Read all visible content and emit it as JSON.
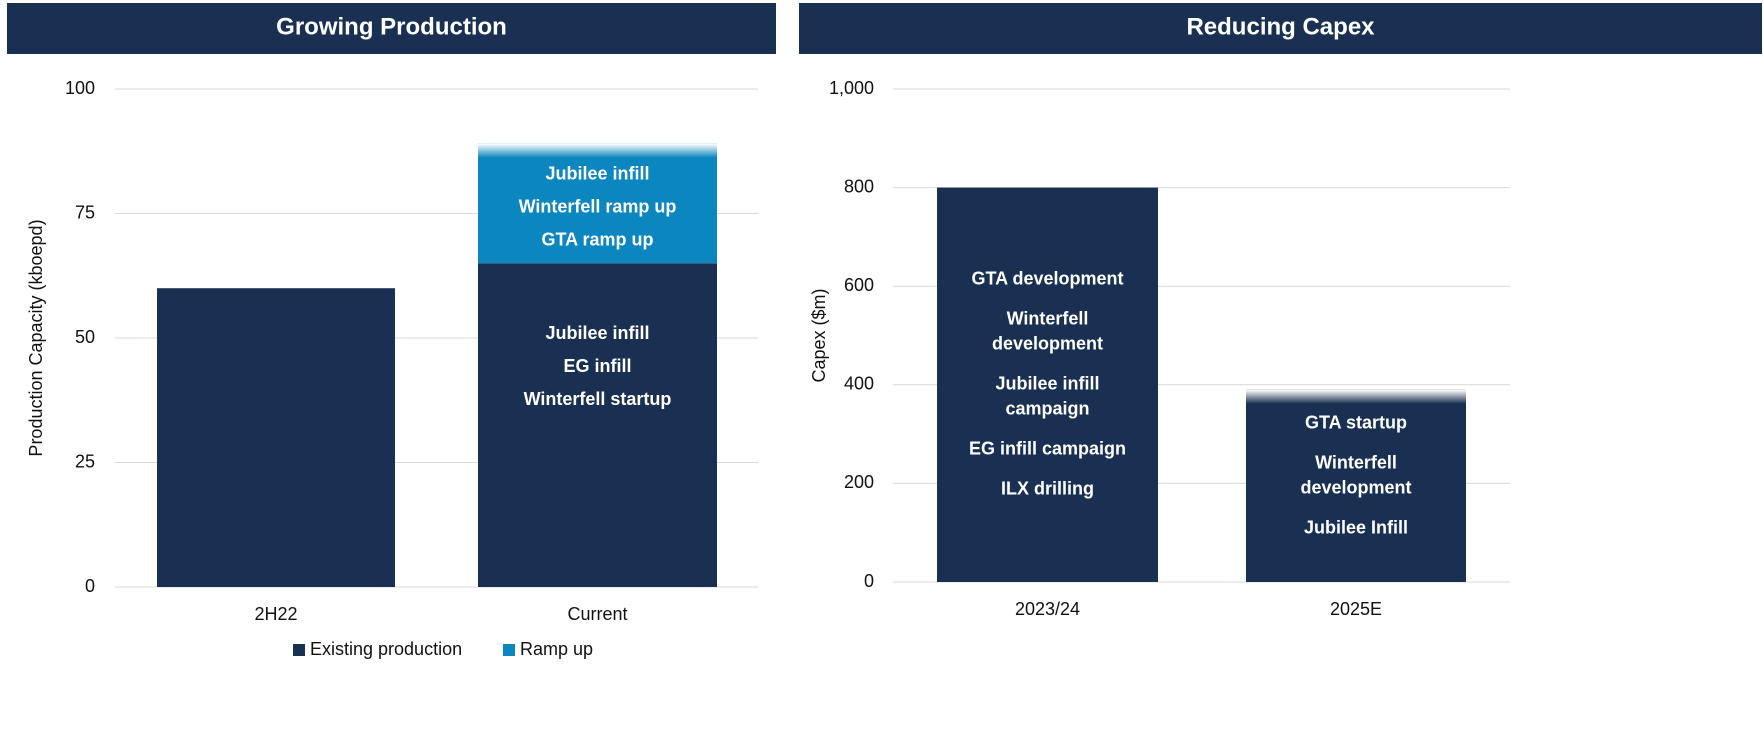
{
  "chart_data": [
    {
      "type": "bar",
      "stacked": true,
      "title": "Growing Production",
      "ylabel": "Production Capacity (kboepd)",
      "categories": [
        "2H22",
        "Current"
      ],
      "series": [
        {
          "name": "Existing production",
          "color": "#1a3052",
          "values": [
            60,
            65
          ],
          "annotations": [
            null,
            [
              [
                "Jubilee infill"
              ],
              [
                "EG infill"
              ],
              [
                "Winterfell startup"
              ]
            ]
          ]
        },
        {
          "name": "Ramp up",
          "color": "#0b86bf",
          "values": [
            0,
            24
          ],
          "annotations": [
            null,
            [
              [
                "Jubilee infill"
              ],
              [
                "Winterfell ramp up"
              ],
              [
                "GTA ramp up"
              ]
            ]
          ]
        }
      ],
      "ylim": [
        0,
        100
      ],
      "yticks": [
        0,
        25,
        50,
        75,
        100
      ],
      "grid": true,
      "legend": "bottom",
      "header_color": "#1a3052"
    },
    {
      "type": "bar",
      "stacked": true,
      "title": "Reducing Capex",
      "ylabel": "Capex ($m)",
      "categories": [
        "2023/24",
        "2025E"
      ],
      "series": [
        {
          "color": "#1a3052",
          "values": [
            800,
            390
          ],
          "annotations": [
            [
              [
                "GTA development"
              ],
              [
                "Winterfell",
                "development"
              ],
              [
                "Jubilee infill",
                "campaign"
              ],
              [
                "EG infill campaign"
              ],
              [
                "ILX drilling"
              ]
            ],
            [
              [
                "GTA startup"
              ],
              [
                "Winterfell",
                "development"
              ],
              [
                "Jubilee Infill"
              ]
            ]
          ]
        }
      ],
      "ylim": [
        0,
        1000
      ],
      "yticks": [
        0,
        200,
        400,
        600,
        800,
        {
          "value": 1000,
          "label": "1,000"
        }
      ],
      "grid": true,
      "header_color": "#1a3052"
    }
  ]
}
